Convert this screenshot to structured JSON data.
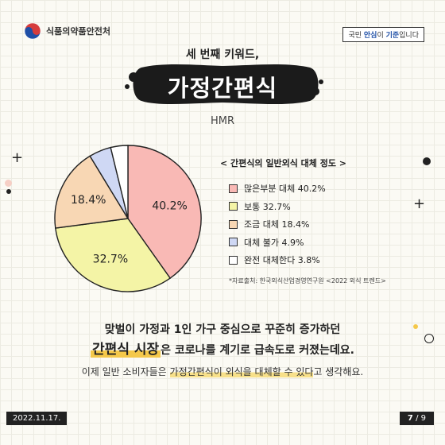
{
  "header": {
    "agency": "식품의약품안전처",
    "slogan_pre": "국민 ",
    "slogan_em1": "안심",
    "slogan_mid": "이 ",
    "slogan_em2": "기준",
    "slogan_post": "입니다"
  },
  "keyword": {
    "intro": "세 번째 키워드,",
    "title": "가정간편식",
    "subtitle": "HMR"
  },
  "chart_data": {
    "type": "pie",
    "title": "< 간편식의 일반외식 대체 정도 >",
    "slices": [
      {
        "name": "많은부분 대체",
        "value": 40.2,
        "label": "40.2%",
        "legend": "많은부분 대체 40.2%",
        "color": "#f9b9b5"
      },
      {
        "name": "보통",
        "value": 32.7,
        "label": "32.7%",
        "legend": "보통 32.7%",
        "color": "#f4f4a6"
      },
      {
        "name": "조금 대체",
        "value": 18.4,
        "label": "18.4%",
        "legend": "조금 대체 18.4%",
        "color": "#f8d7b4"
      },
      {
        "name": "대체 불가",
        "value": 4.9,
        "label": "",
        "legend": "대체 불가 4.9%",
        "color": "#cfd8f4"
      },
      {
        "name": "완전 대체한다",
        "value": 3.8,
        "label": "",
        "legend": "완전 대체한다 3.8%",
        "color": "#ffffff"
      }
    ],
    "source": "*자료출처: 한국외식산업경영연구원 <2022 외식 트렌드>"
  },
  "body": {
    "line1": "맞벌이 가정과 1인 가구 중심으로 꾸준히 증가하던",
    "line2_highlight": "간편식 시장",
    "line2_rest": "은 코로나를 계기로 급속도로 커졌는데요.",
    "line3_pre": "이제 일반 소비자들은 ",
    "line3_highlight": "가정간편식이 외식을 대체할 수 있다",
    "line3_post": "고 생각해요."
  },
  "footer": {
    "date": "2022.11.17.",
    "page_current": "7",
    "page_total": "9"
  }
}
